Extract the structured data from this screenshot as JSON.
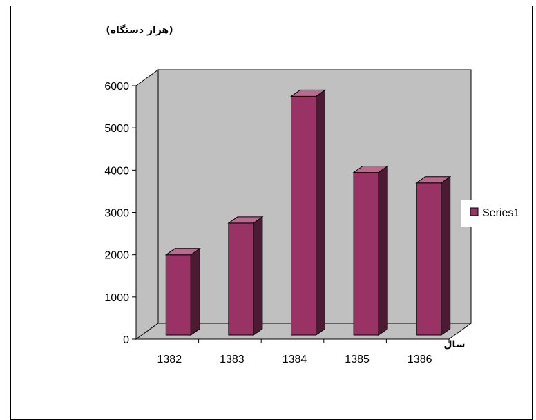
{
  "chart_data": {
    "type": "bar",
    "ylabel": "(هزار دستگاه)",
    "xlabel": "سال",
    "categories": [
      "1382",
      "1383",
      "1384",
      "1385",
      "1386"
    ],
    "series": [
      {
        "name": "Series1",
        "values": [
          1900,
          2650,
          5650,
          3850,
          3600
        ],
        "color": "#993366"
      }
    ],
    "ylim": [
      0,
      6000
    ],
    "yticks": [
      "0",
      "1000",
      "2000",
      "3000",
      "4000",
      "5000",
      "6000"
    ],
    "grid": false,
    "legend_position": "right",
    "colors": {
      "wall": "#c0c0c0",
      "bar_front": "#993366",
      "bar_side": "#4d1a33",
      "bar_top": "#b86a8f"
    }
  }
}
